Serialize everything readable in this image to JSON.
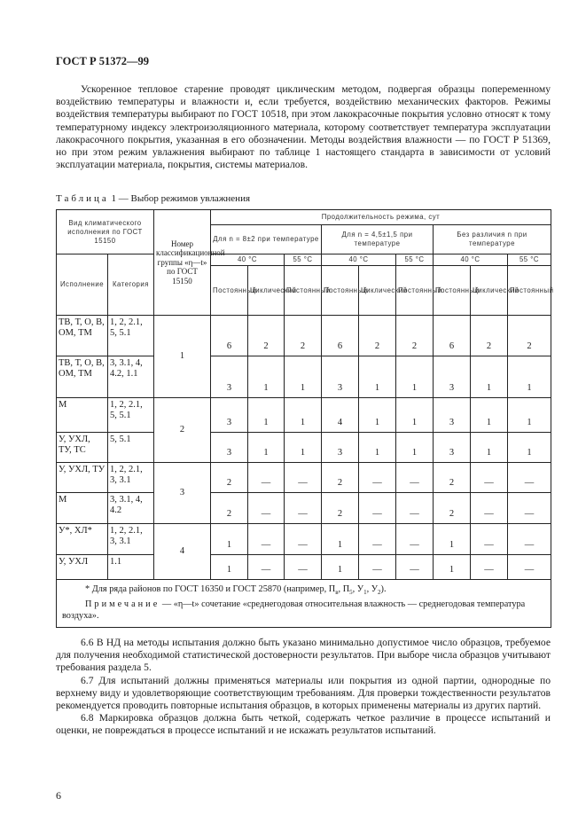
{
  "header": {
    "doc_id": "ГОСТ Р 51372—99"
  },
  "intro": "Ускоренное тепловое старение проводят циклическим методом, подвергая образцы попеременному воздействию температуры и влажности и, если требуется, воздействию механических факторов. Режимы воздействия температуры выбирают по ГОСТ 10518, при этом лакокрасочные покрытия условно относят к тому температурному индексу электроизоляционного материала, которому соответствует температура эксплуатации лакокрасочного покрытия, указанная в его обозначении. Методы воздействия влажности — по ГОСТ Р 51369, но при этом режим увлажнения выбирают по таблице 1 настоящего стандарта в зависимости от условий эксплуатации материала, покрытия, системы материалов.",
  "table": {
    "caption_label": "Таблица",
    "caption_text": "1 — Выбор режимов увлажнения",
    "h_vid": "Вид климатического исполнения по ГОСТ 15150",
    "h_nomer": "Номер классификационной группы «η—t» по ГОСТ 15150",
    "h_duration": "Продолжительность режима, сут",
    "h_g1": "Для n = 8±2 при температуре",
    "h_g2": "Для n = 4,5±1,5 при температуре",
    "h_g3": "Без различия n при температуре",
    "t40": "40 °C",
    "t55": "55 °C",
    "h_isp": "Исполнение",
    "h_kat": "Категория",
    "h_post": "Постоянный",
    "h_cycl": "Циклический",
    "rows": [
      {
        "isp": "ТВ, Т, О, В, ОМ, ТМ",
        "kat": "1, 2, 2.1, 5, 5.1",
        "group": "1",
        "v": [
          "6",
          "2",
          "2",
          "6",
          "2",
          "2",
          "6",
          "2",
          "2"
        ]
      },
      {
        "isp": "ТВ, Т, О, В, ОМ, ТМ",
        "kat": "3, 3.1, 4, 4.2, 1.1",
        "v": [
          "3",
          "1",
          "1",
          "3",
          "1",
          "1",
          "3",
          "1",
          "1"
        ]
      },
      {
        "isp": "М",
        "kat": "1, 2, 2.1, 5, 5.1",
        "group": "2",
        "v": [
          "3",
          "1",
          "1",
          "4",
          "1",
          "1",
          "3",
          "1",
          "1"
        ]
      },
      {
        "isp": "У, УХЛ, ТУ, ТС",
        "kat": "5, 5.1",
        "v": [
          "3",
          "1",
          "1",
          "3",
          "1",
          "1",
          "3",
          "1",
          "1"
        ]
      },
      {
        "isp": "У, УХЛ, ТУ",
        "kat": "1, 2, 2.1, 3, 3.1",
        "group": "3",
        "v": [
          "2",
          "—",
          "—",
          "2",
          "—",
          "—",
          "2",
          "—",
          "—"
        ]
      },
      {
        "isp": "М",
        "kat": "3, 3.1, 4, 4.2",
        "v": [
          "2",
          "—",
          "—",
          "2",
          "—",
          "—",
          "2",
          "—",
          "—"
        ]
      },
      {
        "isp": "У*, ХЛ*",
        "kat": "1, 2, 2.1, 3, 3.1",
        "group": "4",
        "v": [
          "1",
          "—",
          "—",
          "1",
          "—",
          "—",
          "1",
          "—",
          "—"
        ]
      },
      {
        "isp": "У, УХЛ",
        "kat": "1.1",
        "v": [
          "1",
          "—",
          "—",
          "1",
          "—",
          "—",
          "1",
          "—",
          "—"
        ]
      }
    ],
    "footnote": "* Для ряда районов по ГОСТ 16350 и ГОСТ 25870 (например, П",
    "footnote_subs": [
      "в",
      "5",
      "1",
      "2"
    ],
    "note_label": "Примечание",
    "note_text": "— «η—t» сочетание «среднегодовая относительная влажность — среднегодовая температура воздуха»."
  },
  "paragraphs": [
    "6.6 В НД на методы испытания должно быть указано минимально допустимое число образцов, требуемое для получения необходимой статистической достоверности результатов. При выборе числа образцов учитывают требования раздела 5.",
    "6.7 Для испытаний должны применяться материалы или покрытия из одной партии, однородные по верхнему виду и удовлетворяющие соответствующим требованиям. Для проверки тождественности результатов рекомендуется проводить повторные испытания образцов, в которых применены материалы из других партий.",
    "6.8 Маркировка образцов должна быть четкой, содержать четкое различие в процессе испытаний и оценки, не повреждаться в процессе испытаний и не искажать результатов испытаний."
  ],
  "page_number": "6"
}
